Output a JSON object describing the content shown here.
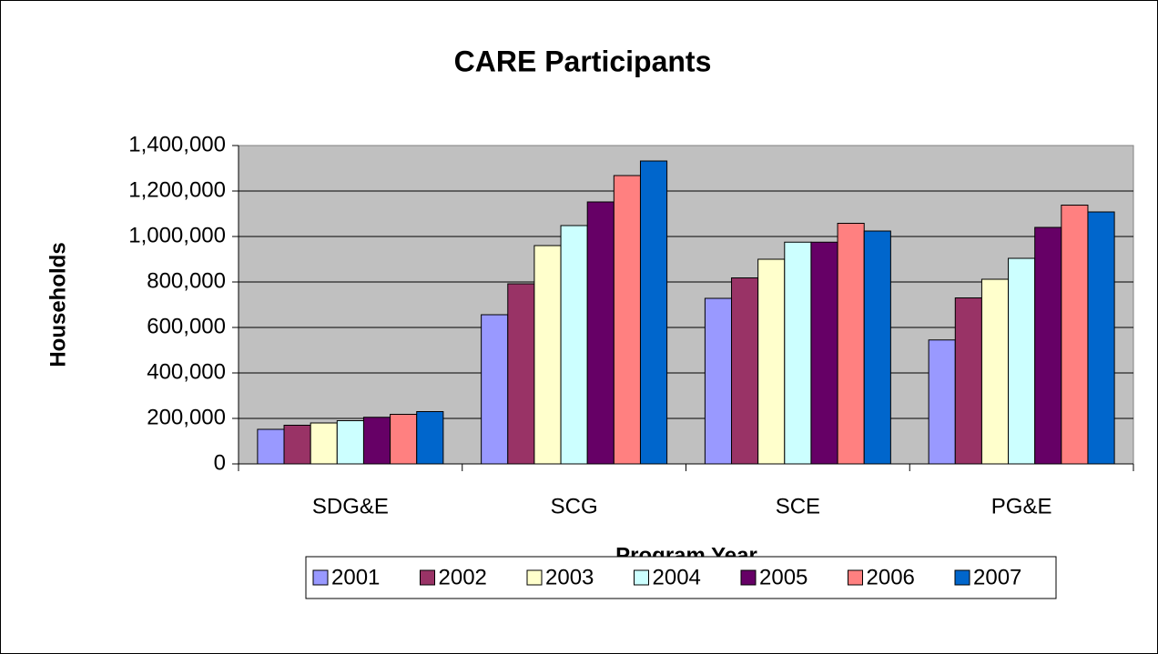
{
  "chart_data": {
    "type": "bar",
    "title": "CARE Participants",
    "xlabel": "Program Year",
    "ylabel": "Households",
    "categories": [
      "SDG&E",
      "SCG",
      "SCE",
      "PG&E"
    ],
    "series": [
      {
        "name": "2001",
        "color": "#9999ff",
        "values": [
          152000,
          656000,
          728000,
          545000
        ]
      },
      {
        "name": "2002",
        "color": "#993366",
        "values": [
          170000,
          792000,
          818000,
          730000
        ]
      },
      {
        "name": "2003",
        "color": "#ffffcc",
        "values": [
          180000,
          960000,
          900000,
          812000
        ]
      },
      {
        "name": "2004",
        "color": "#ccffff",
        "values": [
          190000,
          1048000,
          975000,
          904000
        ]
      },
      {
        "name": "2005",
        "color": "#660066",
        "values": [
          205000,
          1152000,
          975000,
          1040000
        ]
      },
      {
        "name": "2006",
        "color": "#ff8080",
        "values": [
          218000,
          1268000,
          1058000,
          1138000
        ]
      },
      {
        "name": "2007",
        "color": "#0066cc",
        "values": [
          230000,
          1332000,
          1024000,
          1108000
        ]
      }
    ],
    "ylim": [
      0,
      1400000
    ],
    "yticks": [
      0,
      {
        "value": 200000,
        "label": "200,000"
      },
      {
        "value": 400000,
        "label": "400,000"
      },
      {
        "value": 600000,
        "label": "600,000"
      },
      {
        "value": 800000,
        "label": "800,000"
      },
      {
        "value": 1000000,
        "label": "1,000,000"
      },
      {
        "value": 1200000,
        "label": "1,200,000"
      },
      {
        "value": 1400000,
        "label": "1,400,000"
      }
    ],
    "grid": true,
    "legend": "bottom"
  }
}
